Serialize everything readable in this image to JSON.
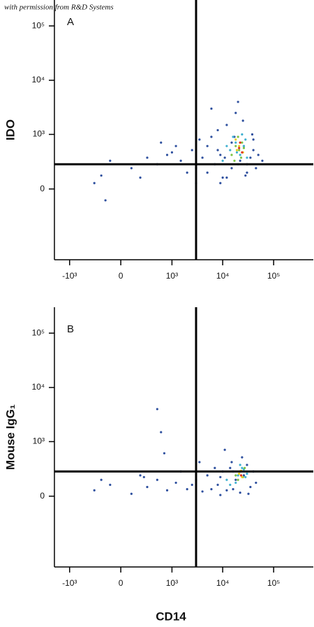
{
  "credit": "with permission from R&D Systems",
  "chart_data": [
    {
      "type": "scatter",
      "annotation": "A",
      "ylabel": "IDO",
      "xscale": "biexponential",
      "yscale": "biexponential",
      "xlim": [
        -2000,
        600000
      ],
      "ylim": [
        -2000,
        300000
      ],
      "xticks": [
        {
          "value": -1000,
          "label": "-10³"
        },
        0,
        {
          "value": 1000,
          "label": "10³"
        },
        {
          "value": 10000,
          "label": "10⁴"
        },
        {
          "value": 100000,
          "label": "10⁵"
        }
      ],
      "yticks": [
        0,
        {
          "value": 1000,
          "label": "10³"
        },
        {
          "value": 10000,
          "label": "10⁴"
        },
        {
          "value": 100000,
          "label": "10⁵"
        }
      ],
      "quadrant": {
        "x": 3000,
        "y": 250
      },
      "series": [
        {
          "color": "#2d4f9e",
          "x": [
            -300,
            -200,
            -100,
            100,
            300,
            500,
            800,
            1200,
            1500,
            2000,
            2500,
            3000,
            3500,
            4000,
            5000,
            6000,
            7000,
            8000,
            9000,
            10000,
            12000,
            15000,
            18000,
            22000,
            26000,
            30000,
            35000,
            40000,
            45000,
            50000,
            6000,
            8000,
            12000,
            20000,
            30000,
            40000,
            -150,
            200,
            600,
            1000,
            5000,
            9000,
            15000,
            25000,
            3000,
            11000,
            17000,
            28000,
            38000,
            60000
          ],
          "y": [
            50,
            120,
            300,
            200,
            350,
            250,
            400,
            600,
            300,
            150,
            500,
            200,
            800,
            350,
            150,
            900,
            250,
            1200,
            400,
            100,
            1500,
            200,
            2500,
            300,
            600,
            150,
            350,
            800,
            200,
            400,
            3000,
            500,
            100,
            4000,
            250,
            500,
            -100,
            100,
            700,
            450,
            600,
            50,
            700,
            1800,
            50,
            350,
            900,
            120,
            1000,
            300
          ]
        },
        {
          "color": "#3fb0d0",
          "x": [
            10000,
            14000,
            18000,
            22000,
            26000,
            30000,
            16000,
            20000,
            24000,
            12000,
            28000,
            19000
          ],
          "y": [
            300,
            500,
            700,
            400,
            600,
            350,
            900,
            250,
            1000,
            600,
            800,
            450
          ]
        },
        {
          "color": "#7cc444",
          "x": [
            15000,
            18000,
            21000,
            24000,
            20000,
            17000,
            23000,
            26000
          ],
          "y": [
            400,
            600,
            500,
            700,
            900,
            300,
            350,
            550
          ]
        },
        {
          "color": "#e8d020",
          "x": [
            19000,
            22000,
            25000,
            21000,
            18000
          ],
          "y": [
            500,
            700,
            450,
            600,
            800
          ]
        },
        {
          "color": "#e03020",
          "x": [
            21000,
            24000,
            22000
          ],
          "y": [
            550,
            450,
            700
          ]
        }
      ]
    },
    {
      "type": "scatter",
      "annotation": "B",
      "ylabel": "Mouse IgG₁",
      "xlabel": "CD14",
      "xscale": "biexponential",
      "yscale": "biexponential",
      "xlim": [
        -2000,
        600000
      ],
      "ylim": [
        -2000,
        300000
      ],
      "xticks": [
        {
          "value": -1000,
          "label": "-10³"
        },
        0,
        {
          "value": 1000,
          "label": "10³"
        },
        {
          "value": 10000,
          "label": "10⁴"
        },
        {
          "value": 100000,
          "label": "10⁵"
        }
      ],
      "yticks": [
        0,
        {
          "value": 1000,
          "label": "10³"
        },
        {
          "value": 10000,
          "label": "10⁴"
        },
        {
          "value": 100000,
          "label": "10⁵"
        }
      ],
      "quadrant": {
        "x": 3000,
        "y": 250
      },
      "series": [
        {
          "color": "#2d4f9e",
          "x": [
            -300,
            -200,
            -100,
            100,
            200,
            300,
            500,
            800,
            1200,
            1500,
            2000,
            2500,
            3000,
            4000,
            5000,
            6000,
            7000,
            8000,
            9000,
            10000,
            12000,
            15000,
            18000,
            22000,
            26000,
            30000,
            35000,
            40000,
            45000,
            500,
            600,
            3500,
            11000,
            16000,
            24000,
            32000,
            250,
            700,
            9000,
            14000
          ],
          "y": [
            50,
            150,
            100,
            20,
            200,
            80,
            150,
            50,
            120,
            250,
            60,
            100,
            150,
            40,
            200,
            60,
            300,
            100,
            10,
            250,
            50,
            400,
            150,
            30,
            200,
            350,
            80,
            250,
            120,
            4000,
            1500,
            400,
            700,
            60,
            500,
            20,
            180,
            600,
            180,
            300
          ]
        },
        {
          "color": "#3fb0d0",
          "x": [
            12000,
            16000,
            20000,
            24000,
            28000,
            14000,
            22000,
            30000,
            18000,
            26000
          ],
          "y": [
            150,
            250,
            200,
            300,
            180,
            100,
            350,
            220,
            120,
            280
          ]
        },
        {
          "color": "#7cc444",
          "x": [
            18000,
            22000,
            25000,
            20000,
            27000
          ],
          "y": [
            200,
            250,
            180,
            150,
            300
          ]
        },
        {
          "color": "#e8d020",
          "x": [
            21000,
            24000,
            23000
          ],
          "y": [
            220,
            180,
            260
          ]
        },
        {
          "color": "#e03020",
          "x": [
            23000
          ],
          "y": [
            200
          ]
        }
      ]
    }
  ]
}
